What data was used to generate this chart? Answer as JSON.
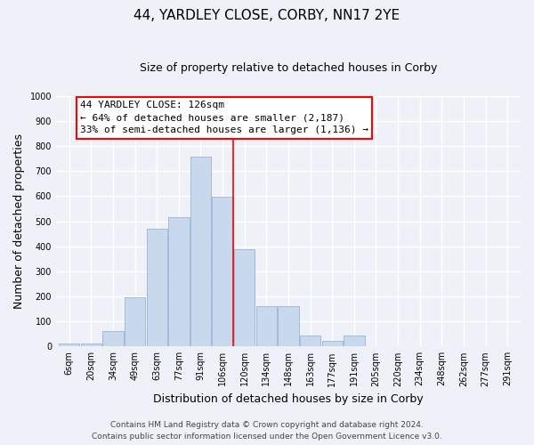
{
  "title": "44, YARDLEY CLOSE, CORBY, NN17 2YE",
  "subtitle": "Size of property relative to detached houses in Corby",
  "xlabel": "Distribution of detached houses by size in Corby",
  "ylabel": "Number of detached properties",
  "bar_color": "#c8d9ee",
  "bar_edge_color": "#9ab5d5",
  "categories": [
    "6sqm",
    "20sqm",
    "34sqm",
    "49sqm",
    "63sqm",
    "77sqm",
    "91sqm",
    "106sqm",
    "120sqm",
    "134sqm",
    "148sqm",
    "163sqm",
    "177sqm",
    "191sqm",
    "205sqm",
    "220sqm",
    "234sqm",
    "248sqm",
    "262sqm",
    "277sqm",
    "291sqm"
  ],
  "values": [
    13,
    13,
    62,
    197,
    470,
    515,
    757,
    597,
    390,
    160,
    160,
    42,
    22,
    42,
    0,
    0,
    0,
    0,
    0,
    0,
    0
  ],
  "ylim": [
    0,
    1000
  ],
  "yticks": [
    0,
    100,
    200,
    300,
    400,
    500,
    600,
    700,
    800,
    900,
    1000
  ],
  "vline_x": 8.0,
  "vline_label": "44 YARDLEY CLOSE: 126sqm",
  "annotation_line1": "← 64% of detached houses are smaller (2,187)",
  "annotation_line2": "33% of semi-detached houses are larger (1,136) →",
  "footer1": "Contains HM Land Registry data © Crown copyright and database right 2024.",
  "footer2": "Contains public sector information licensed under the Open Government Licence v3.0.",
  "background_color": "#eef2f8",
  "grid_color": "#ffffff",
  "title_fontsize": 11,
  "subtitle_fontsize": 9,
  "axis_label_fontsize": 9,
  "tick_fontsize": 7,
  "annotation_fontsize": 8,
  "footer_fontsize": 6.5
}
